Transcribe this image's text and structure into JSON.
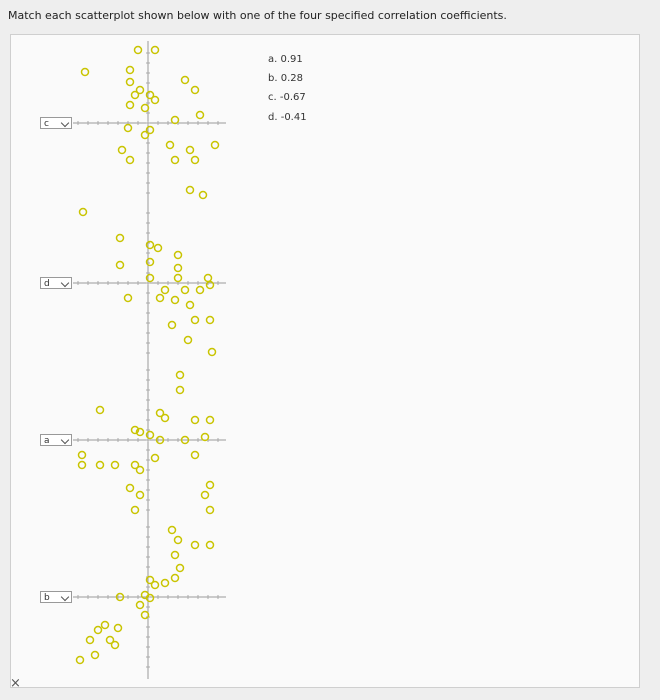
{
  "instruction": "Match each scatterplot shown below with one of the four specified correlation coefficients.",
  "options": [
    "a. 0.91",
    "b. 0.28",
    "c. -0.67",
    "d. -0.41"
  ],
  "close": "×",
  "plots": [
    {
      "selected": "c",
      "x": [
        -63,
        -10,
        7,
        -18,
        -18,
        -13,
        -8,
        2,
        7,
        -18,
        -3,
        37,
        47,
        52,
        27,
        -3,
        2,
        -20,
        -26,
        -18,
        22,
        42,
        67,
        27,
        47,
        42,
        55
      ],
      "y": [
        51,
        73,
        73,
        53,
        41,
        28,
        33,
        28,
        23,
        18,
        15,
        43,
        33,
        8,
        3,
        -12,
        -7,
        -5,
        -27,
        -37,
        -22,
        -27,
        -22,
        -37,
        -37,
        -67,
        -72
      ]
    },
    {
      "selected": "d",
      "x": [
        -65,
        -28,
        -28,
        -20,
        2,
        10,
        30,
        2,
        30,
        30,
        2,
        17,
        37,
        52,
        62,
        12,
        27,
        42,
        24,
        47,
        62,
        40,
        64,
        60
      ],
      "y": [
        71,
        45,
        18,
        -15,
        38,
        35,
        28,
        21,
        15,
        5,
        5,
        -7,
        -7,
        -7,
        -2,
        -15,
        -17,
        -22,
        -42,
        -37,
        -37,
        -57,
        -69,
        5
      ]
    },
    {
      "selected": "a",
      "x": [
        32,
        32,
        -48,
        12,
        17,
        47,
        62,
        -13,
        -8,
        2,
        12,
        37,
        57,
        -66,
        -66,
        -48,
        -33,
        -13,
        -8,
        7,
        47,
        62,
        62,
        -18,
        -8,
        -13,
        57
      ],
      "y": [
        65,
        50,
        30,
        27,
        22,
        20,
        20,
        10,
        8,
        5,
        0,
        0,
        3,
        -15,
        -25,
        -25,
        -25,
        -25,
        -30,
        -18,
        -15,
        -45,
        -70,
        -48,
        -55,
        -70,
        -55
      ]
    },
    {
      "selected": "b",
      "x": [
        24,
        47,
        27,
        32,
        2,
        7,
        17,
        27,
        -3,
        2,
        -8,
        -3,
        -28,
        -50,
        -43,
        -38,
        -30,
        -33,
        -58,
        -53,
        -68,
        62,
        30
      ],
      "y": [
        67,
        52,
        42,
        29,
        17,
        12,
        14,
        19,
        2,
        -1,
        -8,
        -18,
        0,
        -33,
        -28,
        -43,
        -31,
        -48,
        -43,
        -58,
        -63,
        52,
        57
      ]
    }
  ]
}
